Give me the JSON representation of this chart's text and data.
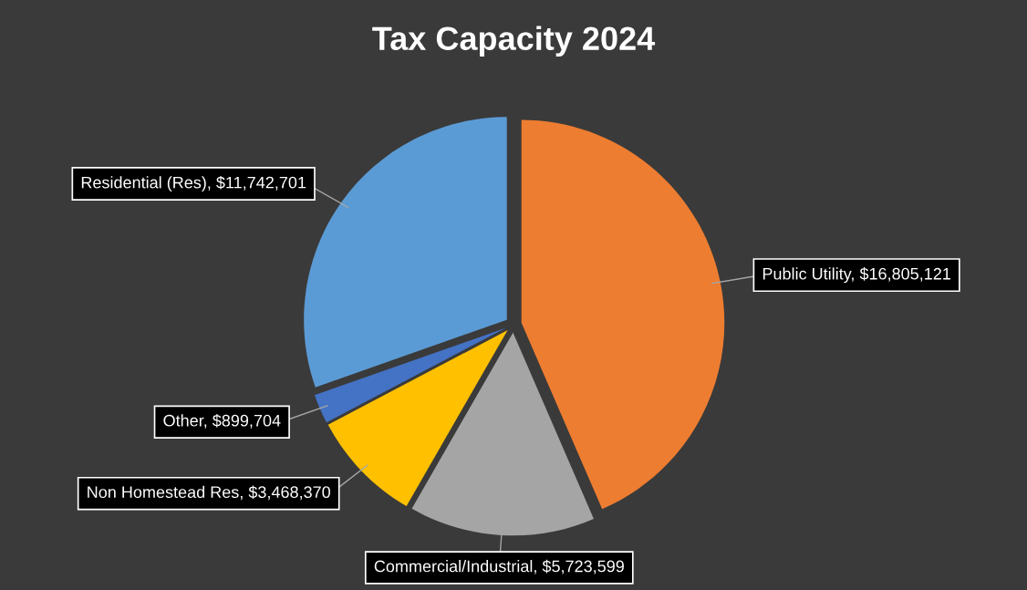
{
  "chart_data": {
    "type": "pie",
    "title": "Tax Capacity 2024",
    "categories": [
      "Public Utility",
      "Commercial/Industrial",
      "Non Homestead Res",
      "Other",
      "Residential (Res)"
    ],
    "values": [
      16805121,
      5723599,
      3468370,
      899704,
      11742701
    ],
    "value_labels": [
      "$16,805,121",
      "$5,723,599",
      "$3,468,370",
      "$899,704",
      "$11,742,701"
    ],
    "colors": [
      "#ed7d31",
      "#a5a5a5",
      "#ffc000",
      "#4472c4",
      "#5b9bd5"
    ],
    "legend": false
  }
}
